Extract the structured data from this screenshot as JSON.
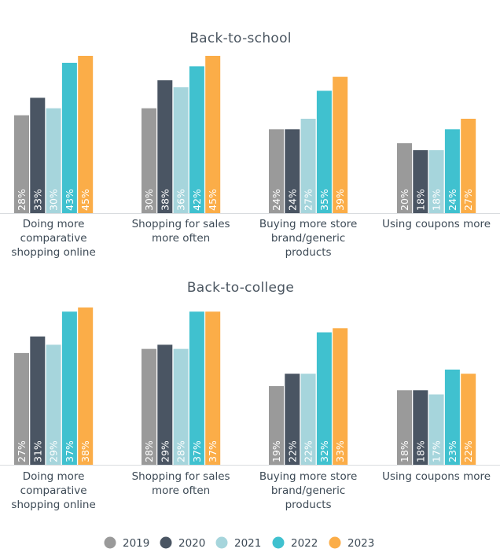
{
  "chart_data": {
    "type": "bar",
    "series_names": [
      "2019",
      "2020",
      "2021",
      "2022",
      "2023"
    ],
    "colors": [
      "#9a9a9a",
      "#4a5563",
      "#a6d5dc",
      "#40c1cf",
      "#fbad48"
    ],
    "legend_position": "bottom",
    "panels": [
      {
        "title": "Back-to-school",
        "categories": [
          {
            "lines": [
              "Doing more",
              "comparative",
              "shopping online"
            ],
            "values": [
              28,
              33,
              30,
              43,
              45
            ]
          },
          {
            "lines": [
              "Shopping for sales",
              "more often"
            ],
            "values": [
              30,
              38,
              36,
              42,
              45
            ]
          },
          {
            "lines": [
              "Buying more store",
              "brand/generic",
              "products"
            ],
            "values": [
              24,
              24,
              27,
              35,
              39
            ]
          },
          {
            "lines": [
              "Using coupons more"
            ],
            "values": [
              20,
              18,
              18,
              24,
              27
            ]
          }
        ]
      },
      {
        "title": "Back-to-college",
        "categories": [
          {
            "lines": [
              "Doing more",
              "comparative",
              "shopping online"
            ],
            "values": [
              27,
              31,
              29,
              37,
              38
            ]
          },
          {
            "lines": [
              "Shopping for sales",
              "more often"
            ],
            "values": [
              28,
              29,
              28,
              37,
              37
            ]
          },
          {
            "lines": [
              "Buying more store",
              "brand/generic",
              "products"
            ],
            "values": [
              19,
              22,
              22,
              32,
              33
            ]
          },
          {
            "lines": [
              "Using coupons more"
            ],
            "values": [
              18,
              18,
              17,
              23,
              22
            ]
          }
        ]
      }
    ]
  }
}
